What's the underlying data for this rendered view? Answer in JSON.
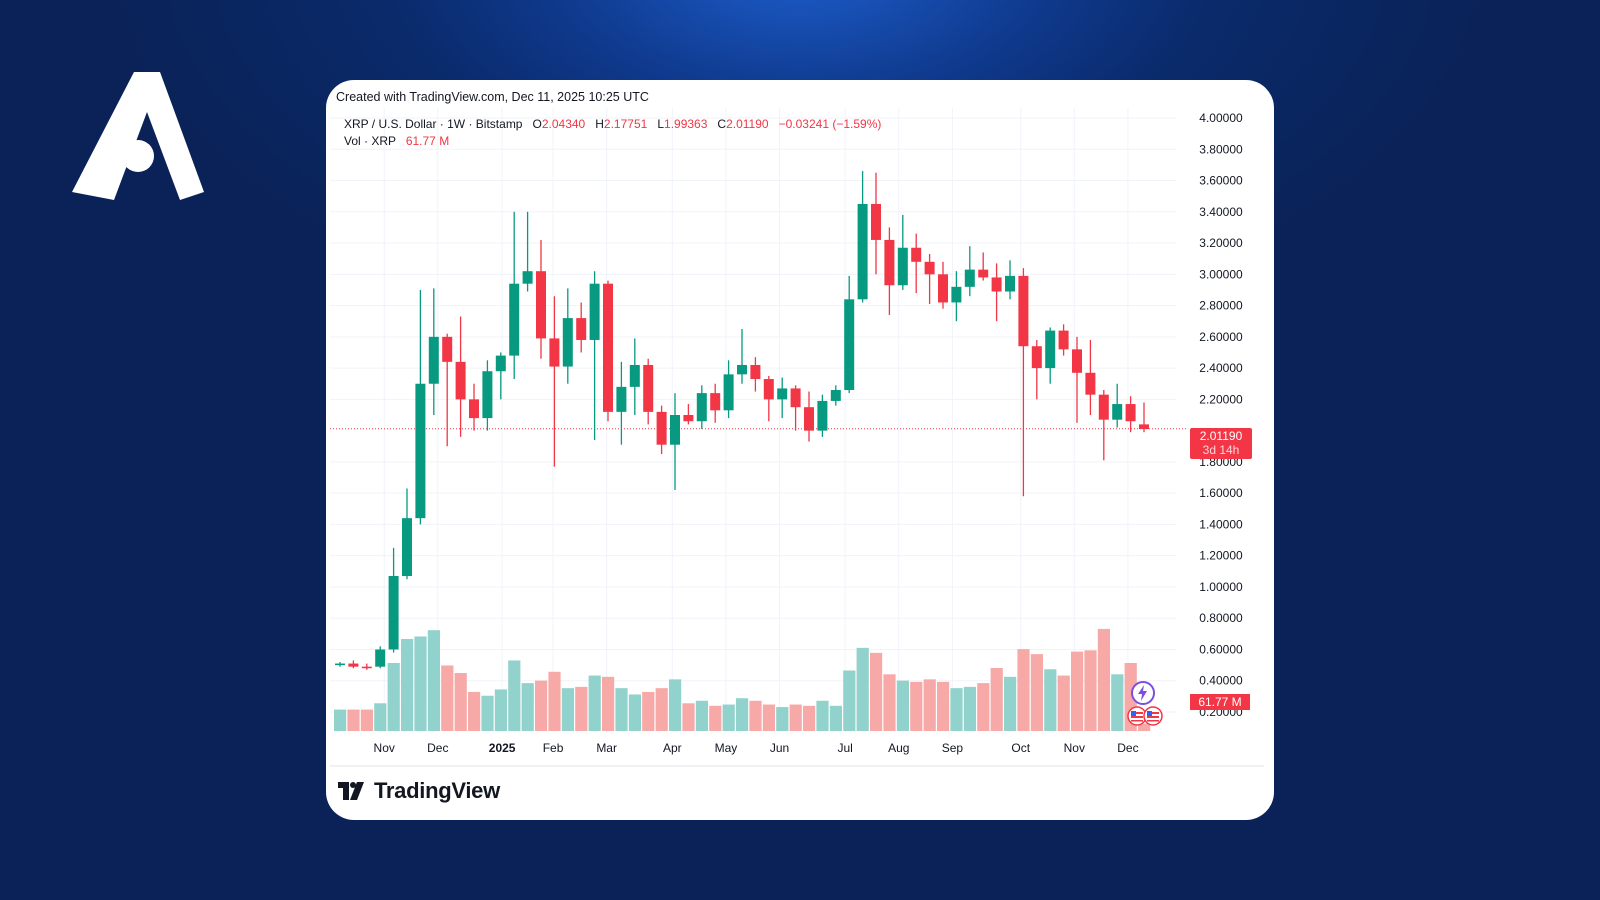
{
  "created_text": "Created with TradingView.com, Dec 11, 2025 10:25 UTC",
  "legend": {
    "symbol": "XRP / U.S. Dollar · 1W · Bitstamp",
    "o_label": "O",
    "o_value": "2.04340",
    "h_label": "H",
    "h_value": "2.17751",
    "l_label": "L",
    "l_value": "1.99363",
    "c_label": "C",
    "c_value": "2.01190",
    "change": "−0.03241 (−1.59%)",
    "vol_label": "Vol · XRP",
    "vol_value": "61.77 M"
  },
  "price_tag": {
    "price": "2.01190",
    "countdown": "3d 14h"
  },
  "vol_tag": "61.77 M",
  "brand": "TradingView",
  "colors": {
    "up": "#089981",
    "down": "#f23645",
    "vol_up": "#92d2cc",
    "vol_down": "#f7a9a7",
    "grid": "#f0f3fa"
  },
  "icons": [
    "logo-a-icon",
    "tradingview-logo-icon",
    "lightning-icon",
    "us-flag-icon"
  ],
  "chart_data": {
    "type": "candlestick",
    "interval": "1W",
    "ylim": [
      0.2,
      4.0
    ],
    "y_ticks": [
      "4.00000",
      "3.80000",
      "3.60000",
      "3.40000",
      "3.20000",
      "3.00000",
      "2.80000",
      "2.60000",
      "2.40000",
      "2.20000",
      "1.80000",
      "1.60000",
      "1.40000",
      "1.20000",
      "1.00000",
      "0.80000",
      "0.60000",
      "0.40000",
      "0.20000"
    ],
    "x_ticks": [
      "Nov",
      "Dec",
      "2025",
      "Feb",
      "Mar",
      "Apr",
      "May",
      "Jun",
      "Jul",
      "Aug",
      "Sep",
      "Oct",
      "Nov",
      "Dec"
    ],
    "last_price": 2.0119,
    "ohlc": [
      [
        0.5,
        0.52,
        0.49,
        0.51
      ],
      [
        0.51,
        0.53,
        0.48,
        0.49
      ],
      [
        0.49,
        0.51,
        0.47,
        0.48
      ],
      [
        0.49,
        0.62,
        0.48,
        0.6
      ],
      [
        0.6,
        1.25,
        0.58,
        1.07
      ],
      [
        1.07,
        1.63,
        1.05,
        1.44
      ],
      [
        1.44,
        2.9,
        1.4,
        2.3
      ],
      [
        2.3,
        2.91,
        2.1,
        2.6
      ],
      [
        2.6,
        2.62,
        1.9,
        2.44
      ],
      [
        2.44,
        2.73,
        1.96,
        2.2
      ],
      [
        2.2,
        2.3,
        2.0,
        2.08
      ],
      [
        2.08,
        2.45,
        2.0,
        2.38
      ],
      [
        2.38,
        2.5,
        2.2,
        2.48
      ],
      [
        2.48,
        3.4,
        2.33,
        2.94
      ],
      [
        2.94,
        3.4,
        2.89,
        3.02
      ],
      [
        3.02,
        3.22,
        2.46,
        2.59
      ],
      [
        2.59,
        2.86,
        1.77,
        2.41
      ],
      [
        2.41,
        2.91,
        2.3,
        2.72
      ],
      [
        2.72,
        2.82,
        2.5,
        2.58
      ],
      [
        2.58,
        3.02,
        1.94,
        2.94
      ],
      [
        2.94,
        2.96,
        2.06,
        2.12
      ],
      [
        2.12,
        2.44,
        1.91,
        2.28
      ],
      [
        2.28,
        2.59,
        2.1,
        2.42
      ],
      [
        2.42,
        2.46,
        2.04,
        2.12
      ],
      [
        2.12,
        2.16,
        1.85,
        1.91
      ],
      [
        1.91,
        2.24,
        1.62,
        2.1
      ],
      [
        2.1,
        2.17,
        2.04,
        2.06
      ],
      [
        2.06,
        2.29,
        2.01,
        2.24
      ],
      [
        2.24,
        2.3,
        2.05,
        2.13
      ],
      [
        2.13,
        2.45,
        2.08,
        2.36
      ],
      [
        2.36,
        2.65,
        2.3,
        2.42
      ],
      [
        2.42,
        2.47,
        2.25,
        2.33
      ],
      [
        2.33,
        2.35,
        2.06,
        2.2
      ],
      [
        2.2,
        2.34,
        2.08,
        2.27
      ],
      [
        2.27,
        2.29,
        2.0,
        2.15
      ],
      [
        2.15,
        2.25,
        1.93,
        2.0
      ],
      [
        2.0,
        2.23,
        1.96,
        2.19
      ],
      [
        2.19,
        2.29,
        2.16,
        2.26
      ],
      [
        2.26,
        2.99,
        2.24,
        2.84
      ],
      [
        2.84,
        3.66,
        2.82,
        3.45
      ],
      [
        3.45,
        3.65,
        3.0,
        3.22
      ],
      [
        3.22,
        3.3,
        2.74,
        2.93
      ],
      [
        2.93,
        3.38,
        2.9,
        3.17
      ],
      [
        3.17,
        3.26,
        2.88,
        3.08
      ],
      [
        3.08,
        3.13,
        2.81,
        3.0
      ],
      [
        3.0,
        3.08,
        2.78,
        2.82
      ],
      [
        2.82,
        3.02,
        2.7,
        2.92
      ],
      [
        2.92,
        3.18,
        2.86,
        3.03
      ],
      [
        3.03,
        3.14,
        2.96,
        2.98
      ],
      [
        2.98,
        3.07,
        2.7,
        2.89
      ],
      [
        2.89,
        3.09,
        2.84,
        2.99
      ],
      [
        2.99,
        3.04,
        1.58,
        2.54
      ],
      [
        2.54,
        2.58,
        2.2,
        2.4
      ],
      [
        2.4,
        2.66,
        2.3,
        2.64
      ],
      [
        2.64,
        2.68,
        2.48,
        2.52
      ],
      [
        2.52,
        2.6,
        2.05,
        2.37
      ],
      [
        2.37,
        2.58,
        2.1,
        2.23
      ],
      [
        2.23,
        2.26,
        1.81,
        2.07
      ],
      [
        2.07,
        2.3,
        2.02,
        2.17
      ],
      [
        2.17,
        2.22,
        1.99,
        2.06
      ],
      [
        2.04,
        2.18,
        1.99,
        2.01
      ]
    ],
    "volume_rel": [
      0.17,
      0.17,
      0.17,
      0.22,
      0.54,
      0.73,
      0.75,
      0.8,
      0.52,
      0.46,
      0.31,
      0.28,
      0.33,
      0.56,
      0.38,
      0.4,
      0.47,
      0.34,
      0.35,
      0.44,
      0.43,
      0.34,
      0.29,
      0.31,
      0.34,
      0.41,
      0.22,
      0.24,
      0.2,
      0.21,
      0.26,
      0.24,
      0.21,
      0.19,
      0.21,
      0.2,
      0.24,
      0.2,
      0.48,
      0.66,
      0.62,
      0.45,
      0.4,
      0.39,
      0.41,
      0.39,
      0.34,
      0.35,
      0.38,
      0.5,
      0.43,
      0.65,
      0.61,
      0.49,
      0.44,
      0.63,
      0.64,
      0.81,
      0.45,
      0.54,
      0.06
    ]
  }
}
